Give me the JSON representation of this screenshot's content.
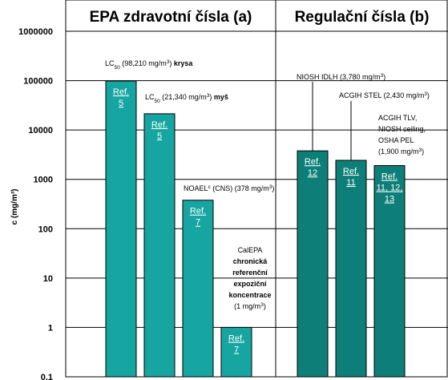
{
  "chart_data": {
    "type": "bar",
    "y_scale": "log",
    "ylim": [
      0.1,
      1000000
    ],
    "grid": true,
    "ylabel": "c (mg/m³)",
    "yticks": [
      "1000000",
      "100000",
      "10000",
      "1000",
      "100",
      "10",
      "1",
      "0.1"
    ],
    "panels": [
      {
        "title": "EPA zdravotní čísla (a)"
      },
      {
        "title": "Regulační čísla (b)"
      }
    ],
    "bars": [
      {
        "panel": 0,
        "value": 98210,
        "ref": [
          "Ref.",
          "5"
        ],
        "color": "#16A5A0"
      },
      {
        "panel": 0,
        "value": 21340,
        "ref": [
          "Ref.",
          "5"
        ],
        "color": "#16A5A0"
      },
      {
        "panel": 0,
        "value": 378,
        "ref": [
          "Ref.",
          "7"
        ],
        "color": "#16A5A0"
      },
      {
        "panel": 0,
        "value": 1,
        "ref": [
          "Ref.",
          "7"
        ],
        "color": "#16A5A0"
      },
      {
        "panel": 1,
        "value": 3780,
        "ref": [
          "Ref.",
          "12"
        ],
        "color": "#0E7F78"
      },
      {
        "panel": 1,
        "value": 2430,
        "ref": [
          "Ref.",
          "11"
        ],
        "color": "#0E7F78"
      },
      {
        "panel": 1,
        "value": 1900,
        "ref": [
          "Ref.",
          "11, 12,",
          "13"
        ],
        "color": "#0E7F78"
      }
    ],
    "annotations": [
      {
        "lines": [
          [
            {
              "t": "LC"
            },
            {
              "t": "50",
              "sub": true
            },
            {
              "t": " (98,210 mg/m"
            },
            {
              "t": "3",
              "sup": true
            },
            {
              "t": ")  "
            },
            {
              "t": "krysa",
              "bold": true
            }
          ]
        ]
      },
      {
        "lines": [
          [
            {
              "t": "LC"
            },
            {
              "t": "50",
              "sub": true
            },
            {
              "t": " (21,340 mg/m"
            },
            {
              "t": "3",
              "sup": true
            },
            {
              "t": ") "
            },
            {
              "t": "myš",
              "bold": true
            }
          ]
        ]
      },
      {
        "lines": [
          [
            {
              "t": "NOAEL"
            },
            {
              "t": "c",
              "sup": true
            },
            {
              "t": " (CNS) (378 mg/m"
            },
            {
              "t": "3",
              "sup": true
            },
            {
              "t": ")"
            }
          ]
        ]
      },
      {
        "lines": [
          [
            {
              "t": "CalEPA"
            }
          ],
          [
            {
              "t": "chronická",
              "bold": true
            }
          ],
          [
            {
              "t": "referenční",
              "bold": true
            }
          ],
          [
            {
              "t": "expoziční",
              "bold": true
            }
          ],
          [
            {
              "t": "koncentrace",
              "bold": true
            }
          ],
          [
            {
              "t": "(1 mg/m"
            },
            {
              "t": "3",
              "sup": true
            },
            {
              "t": ")"
            }
          ]
        ]
      },
      {
        "lines": [
          [
            {
              "t": "NIOSH IDLH (3,780 mg/m"
            },
            {
              "t": "3",
              "sup": true
            },
            {
              "t": ")"
            }
          ]
        ]
      },
      {
        "lines": [
          [
            {
              "t": "ACGIH STEL (2,430 mg/m"
            },
            {
              "t": "3",
              "sup": true
            },
            {
              "t": ")"
            }
          ]
        ]
      },
      {
        "lines": [
          [
            {
              "t": "ACGIH TLV,"
            }
          ],
          [
            {
              "t": "NIOSH ceiling,"
            }
          ],
          [
            {
              "t": "OSHA PEL"
            }
          ],
          [
            {
              "t": "(1,900 mg/m"
            },
            {
              "t": "3",
              "sup": true
            },
            {
              "t": ")"
            }
          ]
        ]
      }
    ],
    "colors": {
      "panel_a": "#16A5A0",
      "panel_b": "#0E7F78"
    }
  }
}
